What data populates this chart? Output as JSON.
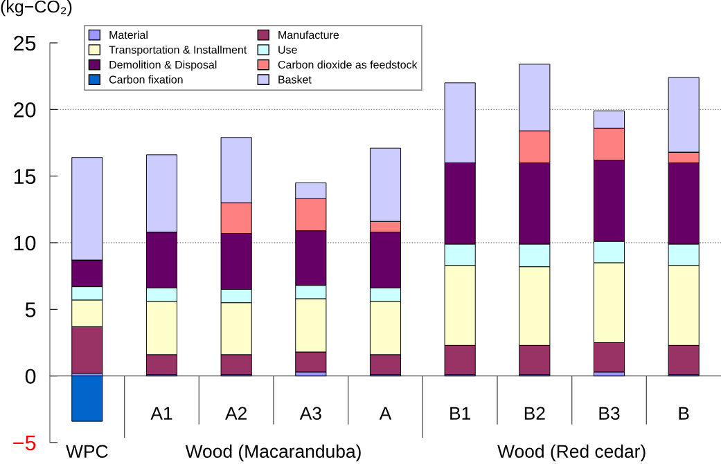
{
  "chart_data": {
    "type": "bar",
    "stacked": true,
    "ylabel": "(kg−CO₂)",
    "categories": [
      "WPC",
      "A1",
      "A2",
      "A3",
      "A",
      "B1",
      "B2",
      "B3",
      "B"
    ],
    "series": [
      {
        "name": "Material",
        "color": "#9999ff",
        "values": [
          0.2,
          0.1,
          0.1,
          0.3,
          0.1,
          0.1,
          0.1,
          0.3,
          0.1
        ]
      },
      {
        "name": "Manufacture",
        "color": "#993366",
        "values": [
          3.5,
          1.5,
          1.5,
          1.5,
          1.5,
          2.2,
          2.2,
          2.2,
          2.2
        ]
      },
      {
        "name": "Transportation & Installment",
        "color": "#ffffcc",
        "values": [
          2.0,
          4.0,
          3.9,
          4.0,
          4.0,
          6.0,
          5.9,
          6.0,
          6.0
        ]
      },
      {
        "name": "Use",
        "color": "#ccffff",
        "values": [
          1.0,
          1.0,
          1.0,
          1.0,
          1.0,
          1.6,
          1.7,
          1.6,
          1.6
        ]
      },
      {
        "name": "Demolition & Disposal",
        "color": "#660066",
        "values": [
          2.0,
          4.2,
          4.2,
          4.1,
          4.2,
          6.1,
          6.1,
          6.1,
          6.1
        ]
      },
      {
        "name": "Carbon dioxide as feedstock",
        "color": "#ff8080",
        "values": [
          0,
          0,
          2.3,
          2.4,
          0.8,
          0,
          2.4,
          2.4,
          0.8
        ]
      },
      {
        "name": "Carbon fixation",
        "color": "#0066cc",
        "values": [
          -3.4,
          0,
          0,
          0,
          0,
          0,
          0,
          0,
          0
        ]
      },
      {
        "name": "Basket",
        "color": "#ccccff",
        "values": [
          7.7,
          5.8,
          4.9,
          1.2,
          5.5,
          6.0,
          5.0,
          1.3,
          5.6
        ]
      }
    ],
    "ylim": [
      -5,
      25
    ],
    "yticks": [
      {
        "value": -5,
        "label": "−5"
      },
      0,
      5,
      10,
      15,
      20,
      25
    ],
    "grid": false,
    "ref_lines": [
      {
        "axis": "y",
        "value": 10,
        "line_style": "dotted",
        "color": "#808080"
      },
      {
        "axis": "y",
        "value": 20,
        "line_style": "dotted",
        "color": "#808080"
      }
    ],
    "annotations": [
      "Wood (Macaranduba)",
      "Wood (Red cedar)"
    ],
    "legend": "top left"
  }
}
